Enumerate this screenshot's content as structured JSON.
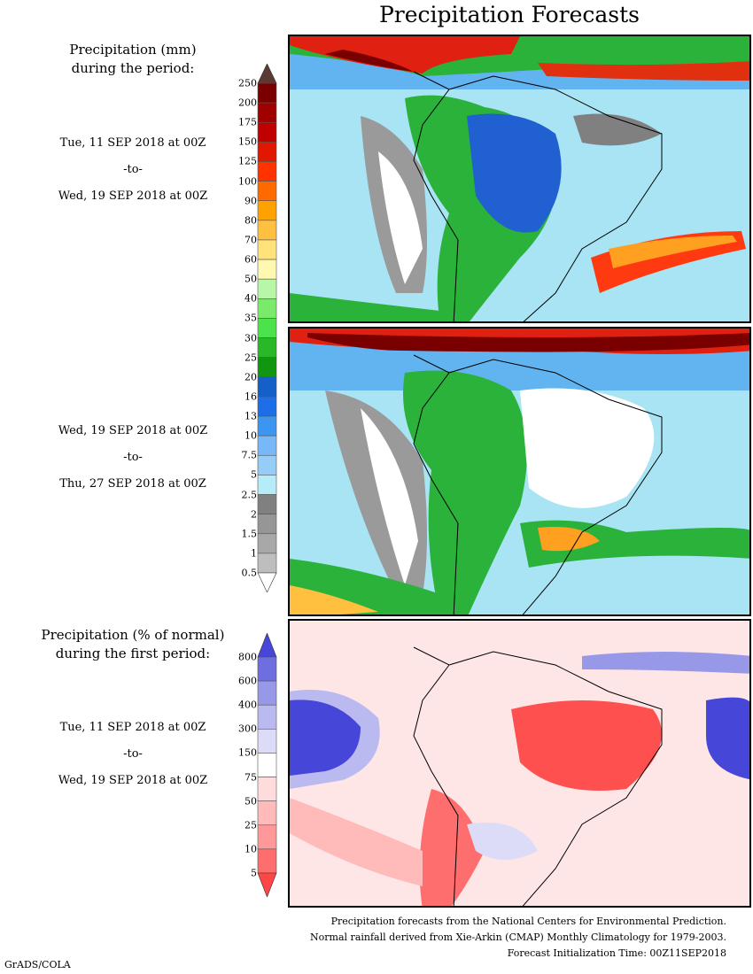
{
  "title": "Precipitation Forecasts",
  "panel_top_label": [
    "Precipitation (mm)",
    "during the period:"
  ],
  "period1": {
    "start": "Tue, 11 SEP 2018 at 00Z",
    "sep": "-to-",
    "end": "Wed, 19 SEP 2018 at 00Z"
  },
  "period2": {
    "start": "Wed, 19 SEP 2018 at 00Z",
    "sep": "-to-",
    "end": "Thu, 27 SEP 2018 at 00Z"
  },
  "panel_bottom_label": [
    "Precipitation (% of normal)",
    "during the first period:"
  ],
  "period3": {
    "start": "Tue, 11 SEP 2018 at 00Z",
    "sep": "-to-",
    "end": "Wed, 19 SEP 2018 at 00Z"
  },
  "mm_scale": {
    "labels": [
      "250",
      "200",
      "175",
      "150",
      "125",
      "100",
      "90",
      "80",
      "70",
      "60",
      "50",
      "40",
      "35",
      "30",
      "25",
      "20",
      "16",
      "13",
      "10",
      "7.5",
      "5",
      "2.5",
      "2",
      "1.5",
      "1",
      "0.5"
    ],
    "colors": [
      "#5a3a32",
      "#7a0000",
      "#a00000",
      "#c00000",
      "#e01800",
      "#ff3300",
      "#ff6a00",
      "#ffa200",
      "#ffc040",
      "#ffe27a",
      "#fff8b0",
      "#b8f6a8",
      "#7aea6a",
      "#4ce24c",
      "#28b828",
      "#109610",
      "#1560c8",
      "#1e6ee8",
      "#3c96f0",
      "#78b8f8",
      "#96ccf8",
      "#b4ecf8",
      "#808080",
      "#969696",
      "#a8a8a8",
      "#bebebe",
      "#ffffff"
    ]
  },
  "pct_scale": {
    "labels": [
      "800",
      "600",
      "400",
      "300",
      "150",
      "75",
      "50",
      "25",
      "10",
      "5"
    ],
    "colors": [
      "#4646d8",
      "#6e6ee0",
      "#9898e8",
      "#babaf0",
      "#dcdcf8",
      "#ffffff",
      "#ffdcdc",
      "#ffbaba",
      "#ff9898",
      "#ff6e6e",
      "#ff4646"
    ]
  },
  "footer": [
    "Precipitation forecasts from the National Centers for Environmental Prediction.",
    "Normal rainfall derived from Xie-Arkin (CMAP) Monthly Climatology for 1979-2003.",
    "Forecast Initialization Time: 00Z11SEP2018"
  ],
  "credit": "GrADS/COLA"
}
